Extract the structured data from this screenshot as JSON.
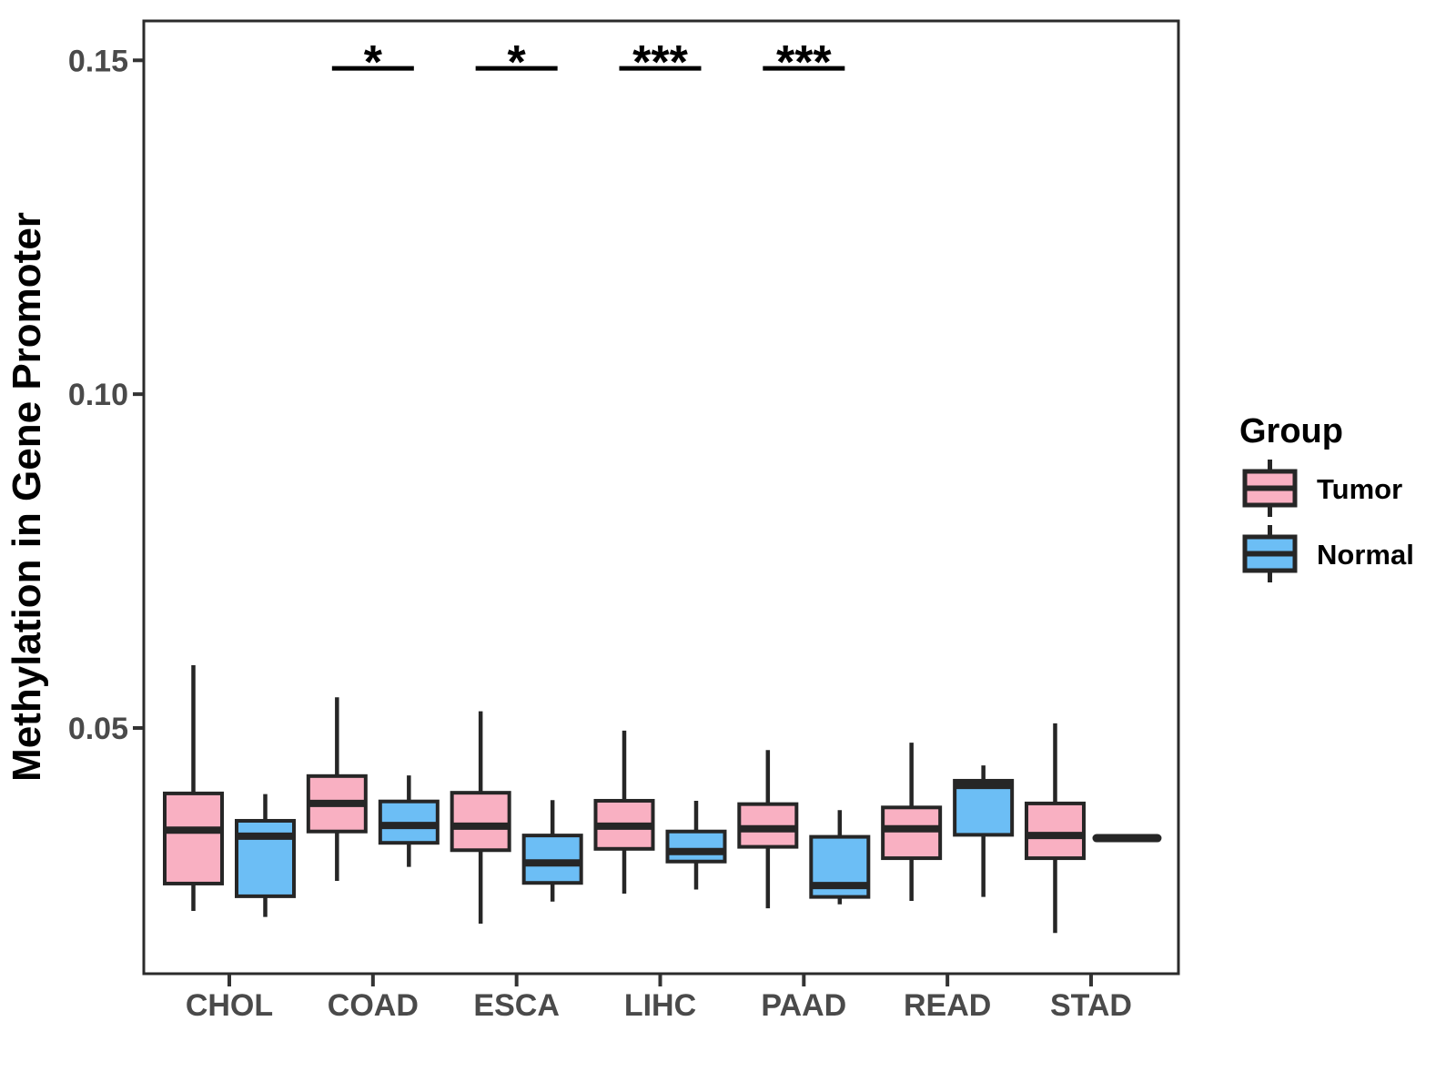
{
  "y_axis": {
    "title": "Methylation in Gene Promoter",
    "ticks": [
      0.05,
      0.1,
      0.15
    ],
    "tick_labels": [
      "0.05",
      "0.10",
      "0.15"
    ]
  },
  "x_axis": {
    "categories": [
      "CHOL",
      "COAD",
      "ESCA",
      "LIHC",
      "PAAD",
      "READ",
      "STAD"
    ]
  },
  "legend": {
    "title": "Group",
    "entries": [
      {
        "label": "Tumor",
        "color": "#F9B0C2"
      },
      {
        "label": "Normal",
        "color": "#6CBEF5"
      }
    ]
  },
  "colors": {
    "stroke": "#262626",
    "panel_border": "#2b2b2b",
    "axis_text": "#4a4a4a",
    "tumor_fill": "#F9B0C2",
    "normal_fill": "#6CBEF5"
  },
  "chart_data": {
    "type": "boxplot",
    "title": "",
    "xlabel": "",
    "ylabel": "Methylation in Gene Promoter",
    "categories": [
      "CHOL",
      "COAD",
      "ESCA",
      "LIHC",
      "PAAD",
      "READ",
      "STAD"
    ],
    "ylim": [
      0.0132,
      0.1559
    ],
    "yticks": [
      0.05,
      0.1,
      0.15
    ],
    "grid": false,
    "legend_position": "right",
    "series": [
      {
        "name": "Tumor",
        "color": "#F9B0C2",
        "boxes": [
          {
            "low": 0.0226,
            "q1": 0.0267,
            "median": 0.0347,
            "q3": 0.0402,
            "high": 0.0594
          },
          {
            "low": 0.0271,
            "q1": 0.0345,
            "median": 0.0387,
            "q3": 0.0428,
            "high": 0.0546
          },
          {
            "low": 0.0207,
            "q1": 0.0317,
            "median": 0.0353,
            "q3": 0.0403,
            "high": 0.0525
          },
          {
            "low": 0.0252,
            "q1": 0.0319,
            "median": 0.0353,
            "q3": 0.0391,
            "high": 0.0496
          },
          {
            "low": 0.023,
            "q1": 0.0322,
            "median": 0.0349,
            "q3": 0.0386,
            "high": 0.0467
          },
          {
            "low": 0.0241,
            "q1": 0.0305,
            "median": 0.0349,
            "q3": 0.0381,
            "high": 0.0478
          },
          {
            "low": 0.0193,
            "q1": 0.0305,
            "median": 0.0339,
            "q3": 0.0387,
            "high": 0.0507
          }
        ]
      },
      {
        "name": "Normal",
        "color": "#6CBEF5",
        "boxes": [
          {
            "low": 0.0217,
            "q1": 0.0248,
            "median": 0.0338,
            "q3": 0.0361,
            "high": 0.0401
          },
          {
            "low": 0.0292,
            "q1": 0.0328,
            "median": 0.0354,
            "q3": 0.039,
            "high": 0.0429
          },
          {
            "low": 0.024,
            "q1": 0.0268,
            "median": 0.0298,
            "q3": 0.0339,
            "high": 0.0392
          },
          {
            "low": 0.0258,
            "q1": 0.03,
            "median": 0.0315,
            "q3": 0.0345,
            "high": 0.0391
          },
          {
            "low": 0.0236,
            "q1": 0.0247,
            "median": 0.0264,
            "q3": 0.0337,
            "high": 0.0377
          },
          {
            "low": 0.0247,
            "q1": 0.034,
            "median": 0.0414,
            "q3": 0.0421,
            "high": 0.0444
          },
          {
            "low": 0.0335,
            "q1": 0.0335,
            "median": 0.0335,
            "q3": 0.0335,
            "high": 0.0335
          }
        ]
      }
    ],
    "significance": [
      {
        "category": "COAD",
        "label": "*"
      },
      {
        "category": "ESCA",
        "label": "*"
      },
      {
        "category": "LIHC",
        "label": "***"
      },
      {
        "category": "PAAD",
        "label": "***"
      }
    ],
    "significance_line_value": 0.1488
  }
}
